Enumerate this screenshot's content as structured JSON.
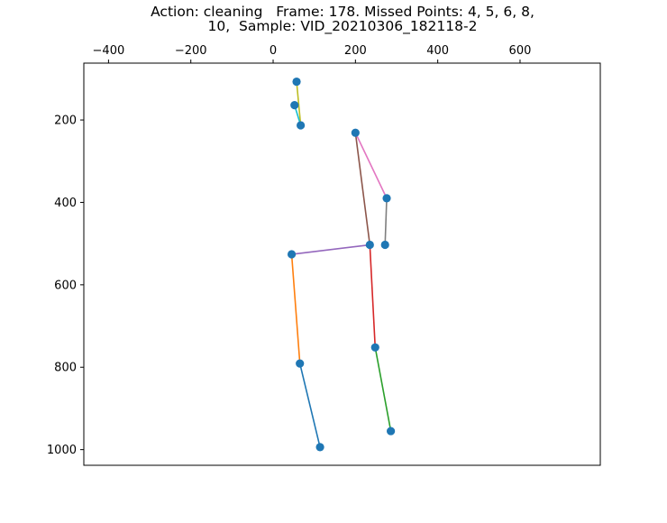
{
  "chart_data": {
    "type": "scatter",
    "title_lines": [
      "Action: cleaning   Frame: 178. Missed Points: 4, 5, 6, 8,",
      "10,  Sample: VID_20210306_182118-2"
    ],
    "xlabel": "",
    "ylabel": "",
    "x_axis_position": "top",
    "y_inverted": true,
    "xlim": [
      -460,
      795
    ],
    "ylim": [
      1038,
      62
    ],
    "x_ticks": [
      -400,
      -200,
      0,
      200,
      400,
      600
    ],
    "y_ticks": [
      200,
      400,
      600,
      800,
      1000
    ],
    "grid": false,
    "point_color": "#1f77b4",
    "points": [
      {
        "x": 57,
        "y": 107
      },
      {
        "x": 52,
        "y": 164
      },
      {
        "x": 67,
        "y": 213
      },
      {
        "x": 200,
        "y": 231
      },
      {
        "x": 276,
        "y": 390
      },
      {
        "x": 272,
        "y": 503
      },
      {
        "x": 235,
        "y": 503
      },
      {
        "x": 45,
        "y": 526
      },
      {
        "x": 248,
        "y": 752
      },
      {
        "x": 65,
        "y": 791
      },
      {
        "x": 286,
        "y": 955
      },
      {
        "x": 114,
        "y": 994
      }
    ],
    "segments": [
      {
        "from": [
          57,
          107
        ],
        "to": [
          67,
          213
        ],
        "color": "#bcbd22"
      },
      {
        "from": [
          52,
          164
        ],
        "to": [
          67,
          213
        ],
        "color": "#17becf"
      },
      {
        "from": [
          200,
          231
        ],
        "to": [
          235,
          503
        ],
        "color": "#8c564b"
      },
      {
        "from": [
          200,
          231
        ],
        "to": [
          276,
          390
        ],
        "color": "#e377c2"
      },
      {
        "from": [
          276,
          390
        ],
        "to": [
          272,
          503
        ],
        "color": "#7f7f7f"
      },
      {
        "from": [
          45,
          526
        ],
        "to": [
          235,
          503
        ],
        "color": "#9467bd"
      },
      {
        "from": [
          235,
          503
        ],
        "to": [
          248,
          752
        ],
        "color": "#d62728"
      },
      {
        "from": [
          248,
          752
        ],
        "to": [
          286,
          955
        ],
        "color": "#2ca02c"
      },
      {
        "from": [
          45,
          526
        ],
        "to": [
          65,
          791
        ],
        "color": "#ff7f0e"
      },
      {
        "from": [
          65,
          791
        ],
        "to": [
          114,
          994
        ],
        "color": "#1f77b4"
      }
    ]
  }
}
